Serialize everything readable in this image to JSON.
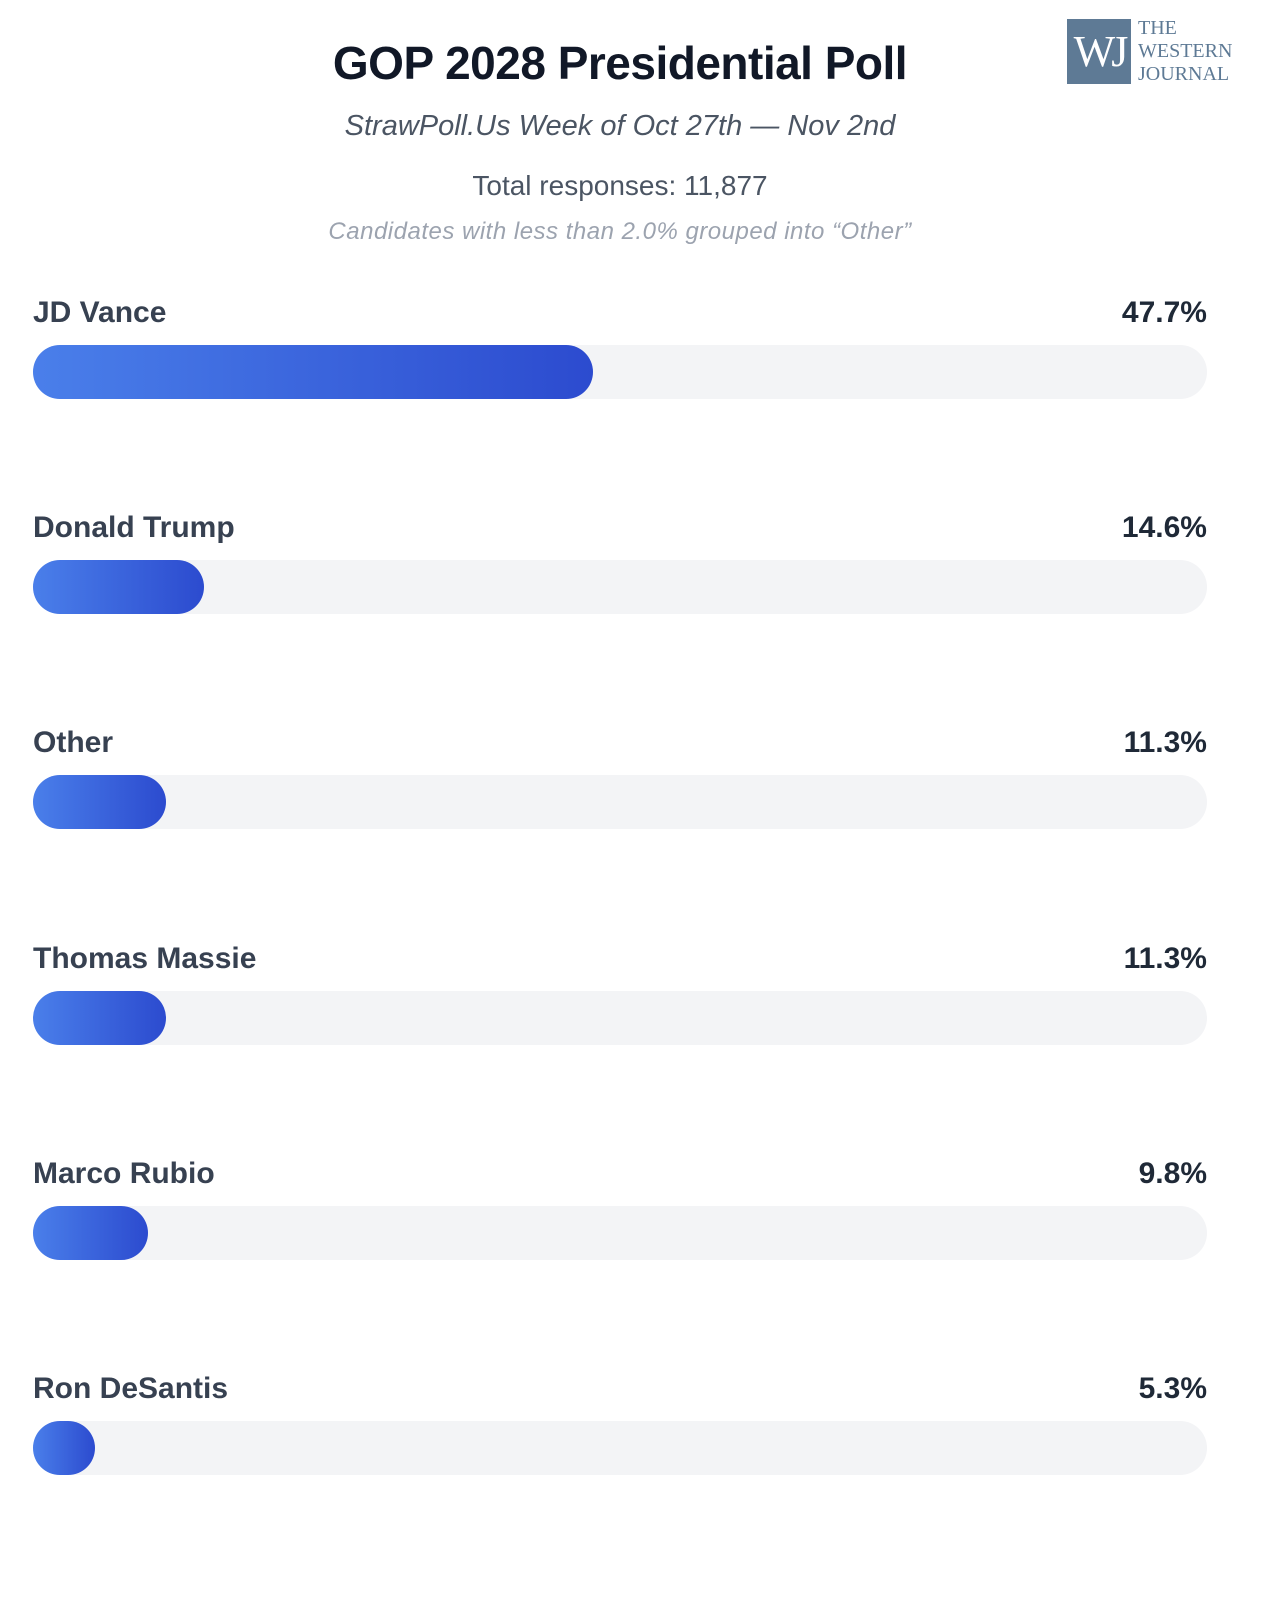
{
  "logo": {
    "mark": "WJ",
    "text": [
      "THE",
      "WESTERN",
      "JOURNAL"
    ]
  },
  "chart_data": {
    "type": "bar",
    "orientation": "horizontal",
    "title": "GOP 2028 Presidential Poll",
    "subtitle": "StrawPoll.Us Week of Oct 27th — Nov 2nd",
    "total_responses": "Total responses: 11,877",
    "note": "Candidates with less than 2.0% grouped into “Other”",
    "categories": [
      "JD Vance",
      "Donald Trump",
      "Other",
      "Thomas Massie",
      "Marco Rubio",
      "Ron DeSantis"
    ],
    "values": [
      47.7,
      14.6,
      11.3,
      11.3,
      9.8,
      5.3
    ],
    "labels": [
      "47.7%",
      "14.6%",
      "11.3%",
      "11.3%",
      "9.8%",
      "5.3%"
    ],
    "xlim": [
      0,
      100
    ],
    "grid": false,
    "colors": {
      "bar_start": "#4a7fea",
      "bar_end": "#2c4bcf",
      "track": "#f3f4f6"
    }
  }
}
